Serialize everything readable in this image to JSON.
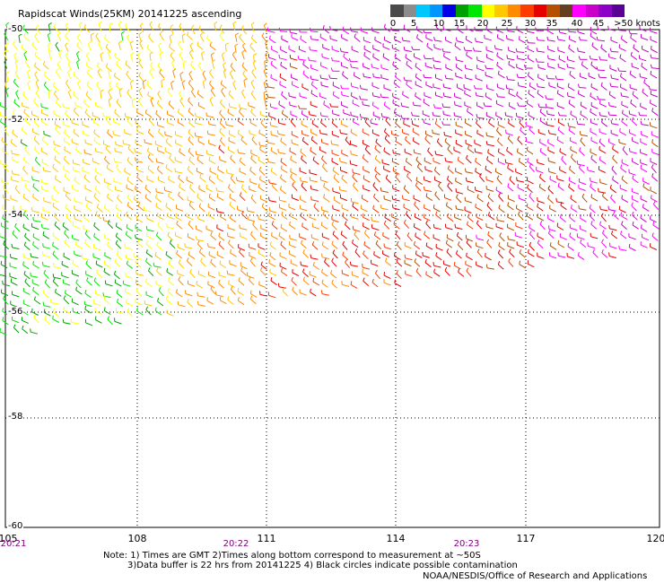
{
  "title": "Rapidscat Winds(25KM) 20141225 ascending",
  "legend": {
    "colors": [
      "#4a4a4a",
      "#8c8c8c",
      "#00c8ff",
      "#0096ff",
      "#0000e6",
      "#00a000",
      "#00e600",
      "#ffff00",
      "#ffc800",
      "#ff8c00",
      "#ff3c00",
      "#e60000",
      "#b45000",
      "#644020",
      "#ff00ff",
      "#c800c8",
      "#8c00c8",
      "#5a0096"
    ],
    "labels": [
      "0",
      "5",
      "10",
      "15",
      "20",
      "25",
      "30",
      "35",
      "40",
      "45",
      ">50 knots"
    ]
  },
  "lat_labels": [
    "-50",
    "-52",
    "-54",
    "-56",
    "-58",
    "-60"
  ],
  "lon_labels": [
    "105",
    "108",
    "111",
    "114",
    "117",
    "120"
  ],
  "time_labels": [
    "20:21",
    "20:22",
    "20:23"
  ],
  "notes": {
    "line1": "Note: 1) Times are GMT 2)Times along bottom correspond to measurement at ~50S",
    "line2": "3)Data buffer is 22 hrs from 20141225 4) Black circles indicate possible contamination"
  },
  "credit": "NOAA/NESDIS/Office of Research and Applications"
}
